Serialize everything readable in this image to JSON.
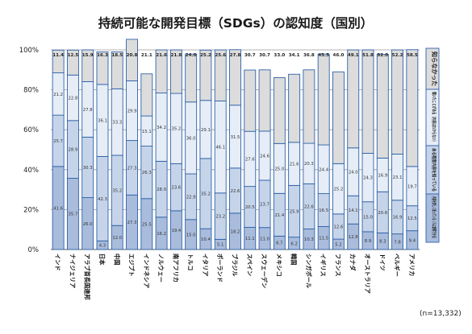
{
  "chart_data": {
    "type": "bar",
    "stacked": true,
    "title": "持続可能な開発目標（SDGs）の認知度（国別）",
    "ylim": [
      0,
      100
    ],
    "yticks": [
      "0%",
      "20%",
      "40%",
      "60%",
      "80%",
      "100%"
    ],
    "categories": [
      "インド",
      "ナイジェリア",
      "アラブ首長国連邦",
      "日本",
      "中国",
      "エジプト",
      "インドネシア",
      "ノルウェー",
      "南アフリカ",
      "トルコ",
      "イタリア",
      "ポーランド",
      "ブラジル",
      "スペイン",
      "スウェーデン",
      "メキシコ",
      "韓国",
      "シンガポール",
      "イギリス",
      "フランス",
      "カナダ",
      "オーストラリア",
      "ドイツ",
      "ベルギー",
      "アメリカ"
    ],
    "series": [
      {
        "name": "内容を詳しく知っている（人に説明できる）",
        "color": "#a9bcdc",
        "values": [
          41.6,
          35.7,
          26.0,
          4.3,
          12.0,
          27.3,
          25.5,
          16.2,
          19.4,
          15.0,
          10.4,
          5.1,
          18.2,
          11.1,
          11.0,
          6.7,
          6.2,
          10.3,
          11.5,
          5.2,
          12.8,
          8.9,
          8.3,
          7.8,
          9.4
        ]
      },
      {
        "name": "ある程度内容を知っている",
        "color": "#c6d4ea",
        "values": [
          25.7,
          28.9,
          30.3,
          42.3,
          35.2,
          27.3,
          26.3,
          28.0,
          23.6,
          22.9,
          35.2,
          23.2,
          22.6,
          20.5,
          23.7,
          21.4,
          25.9,
          22.6,
          16.5,
          12.6,
          14.1,
          15.0,
          20.6,
          16.9,
          12.5
        ]
      },
      {
        "name": "聞いたことがある（内容はわからない）",
        "color": "#e6edf7",
        "values": [
          21.2,
          22.8,
          27.8,
          36.1,
          33.3,
          29.9,
          15.1,
          34.2,
          35.2,
          36.0,
          29.1,
          46.1,
          31.5,
          27.6,
          24.6,
          25.0,
          21.6,
          20.3,
          24.4,
          25.2,
          24.0,
          24.3,
          16.9,
          23.1,
          19.7
        ]
      },
      {
        "name": "知らなかった",
        "color": "#dcdcdc",
        "values": [
          11.4,
          12.5,
          15.9,
          16.3,
          18.5,
          20.8,
          21.1,
          21.6,
          21.8,
          24.0,
          25.2,
          25.6,
          27.8,
          30.7,
          30.7,
          33.0,
          34.1,
          36.8,
          45.5,
          46.0,
          49.1,
          51.8,
          52.0,
          52.2,
          58.5
        ]
      }
    ],
    "note": "(n=13,332)"
  }
}
